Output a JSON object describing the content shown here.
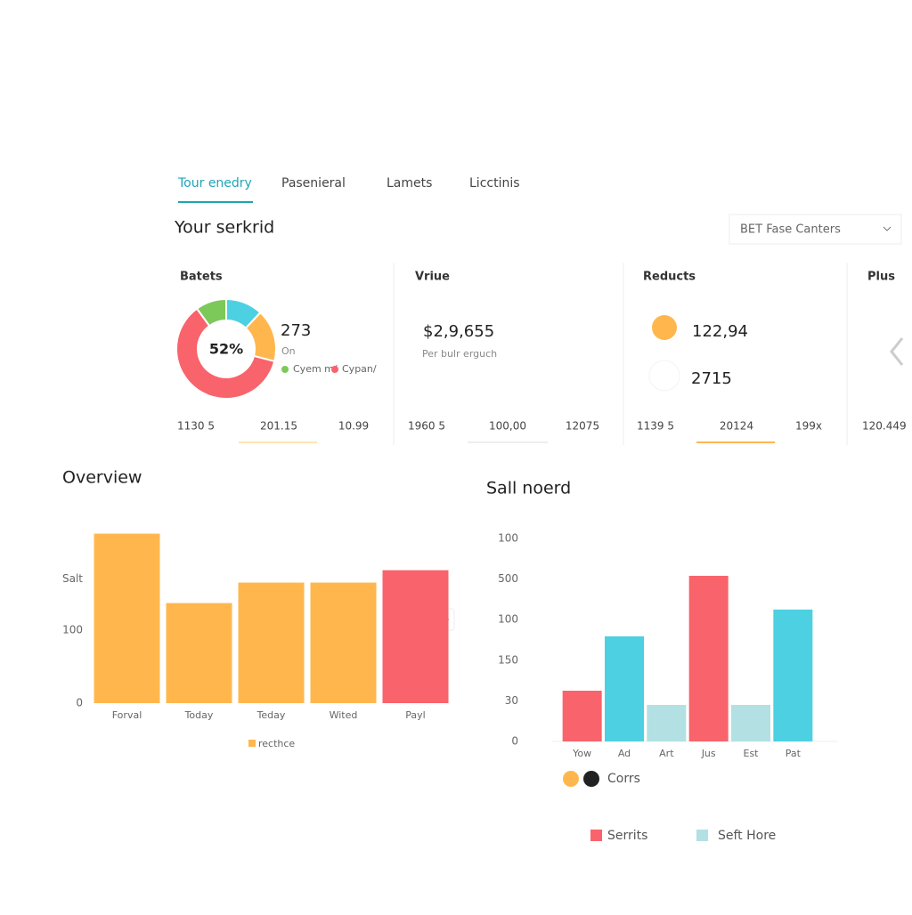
{
  "tabs": [
    "Tour enedry",
    "Pasenieral",
    "Lamets",
    "Licctinis"
  ],
  "header": {
    "title": "Your serkrid",
    "dropdown": "BET Fase Canters"
  },
  "cards": [
    {
      "title": "Batets",
      "donut": {
        "center": "52%",
        "values": [
          12,
          17,
          61,
          10
        ],
        "colors": [
          "#4dd0e1",
          "#ffb74d",
          "#f9636b",
          "#7cc95a"
        ]
      },
      "value": "273",
      "sub": "On",
      "legend": [
        "Cyem m/",
        "Cypan/"
      ],
      "footer": [
        "1130 5",
        "201.15",
        "10.99"
      ]
    },
    {
      "title": "Vriue",
      "value": "$2,9,655",
      "sub": "Per bulr erguch",
      "footer": [
        "1960 5",
        "100,00",
        "12075"
      ]
    },
    {
      "title": "Reducts",
      "value": "122,94",
      "value2": "2715",
      "footer": [
        "1139 5",
        "20124",
        "199x"
      ]
    },
    {
      "title": "Plus",
      "footer": [
        "120.449"
      ]
    }
  ],
  "chart_data": [
    {
      "type": "bar",
      "title": "Overview",
      "categories": [
        "Forval",
        "Today",
        "Teday",
        "Wited",
        "Payl"
      ],
      "values": [
        232,
        137,
        165,
        165,
        182
      ],
      "colors": [
        "#ffb74d",
        "#ffb74d",
        "#ffb74d",
        "#ffb74d",
        "#f9636b"
      ],
      "ylim": [
        0,
        240
      ],
      "yticks": [
        0,
        100,
        {
          "value": 170,
          "label": "Salt"
        }
      ],
      "legend": [
        {
          "name": "recthce",
          "color": "#ffb74d"
        }
      ]
    },
    {
      "type": "bar",
      "title": "Sall noerd",
      "categories": [
        "Yow",
        "Ad",
        "Art",
        "Jus",
        "Est",
        "Pat"
      ],
      "values": [
        1.25,
        2.59,
        0.9,
        4.08,
        0.9,
        3.25
      ],
      "colors": [
        "#f9636b",
        "#4dd0e1",
        "#b2e0e3",
        "#f9636b",
        "#b2e0e3",
        "#4dd0e1"
      ],
      "ylim": [
        0,
        5
      ],
      "yticks": [
        0,
        {
          "value": 1,
          "label": "30"
        },
        {
          "value": 2,
          "label": "150"
        },
        {
          "value": 3,
          "label": "100"
        },
        {
          "value": 4,
          "label": "500"
        },
        {
          "value": 5,
          "label": "100"
        }
      ],
      "legend": [
        {
          "name": "Corrs",
          "color": "#ffb74d"
        },
        {
          "name": "Serrits",
          "color": "#f9636b"
        },
        {
          "name": "Seft Hore",
          "color": "#b2e0e3"
        }
      ]
    }
  ]
}
